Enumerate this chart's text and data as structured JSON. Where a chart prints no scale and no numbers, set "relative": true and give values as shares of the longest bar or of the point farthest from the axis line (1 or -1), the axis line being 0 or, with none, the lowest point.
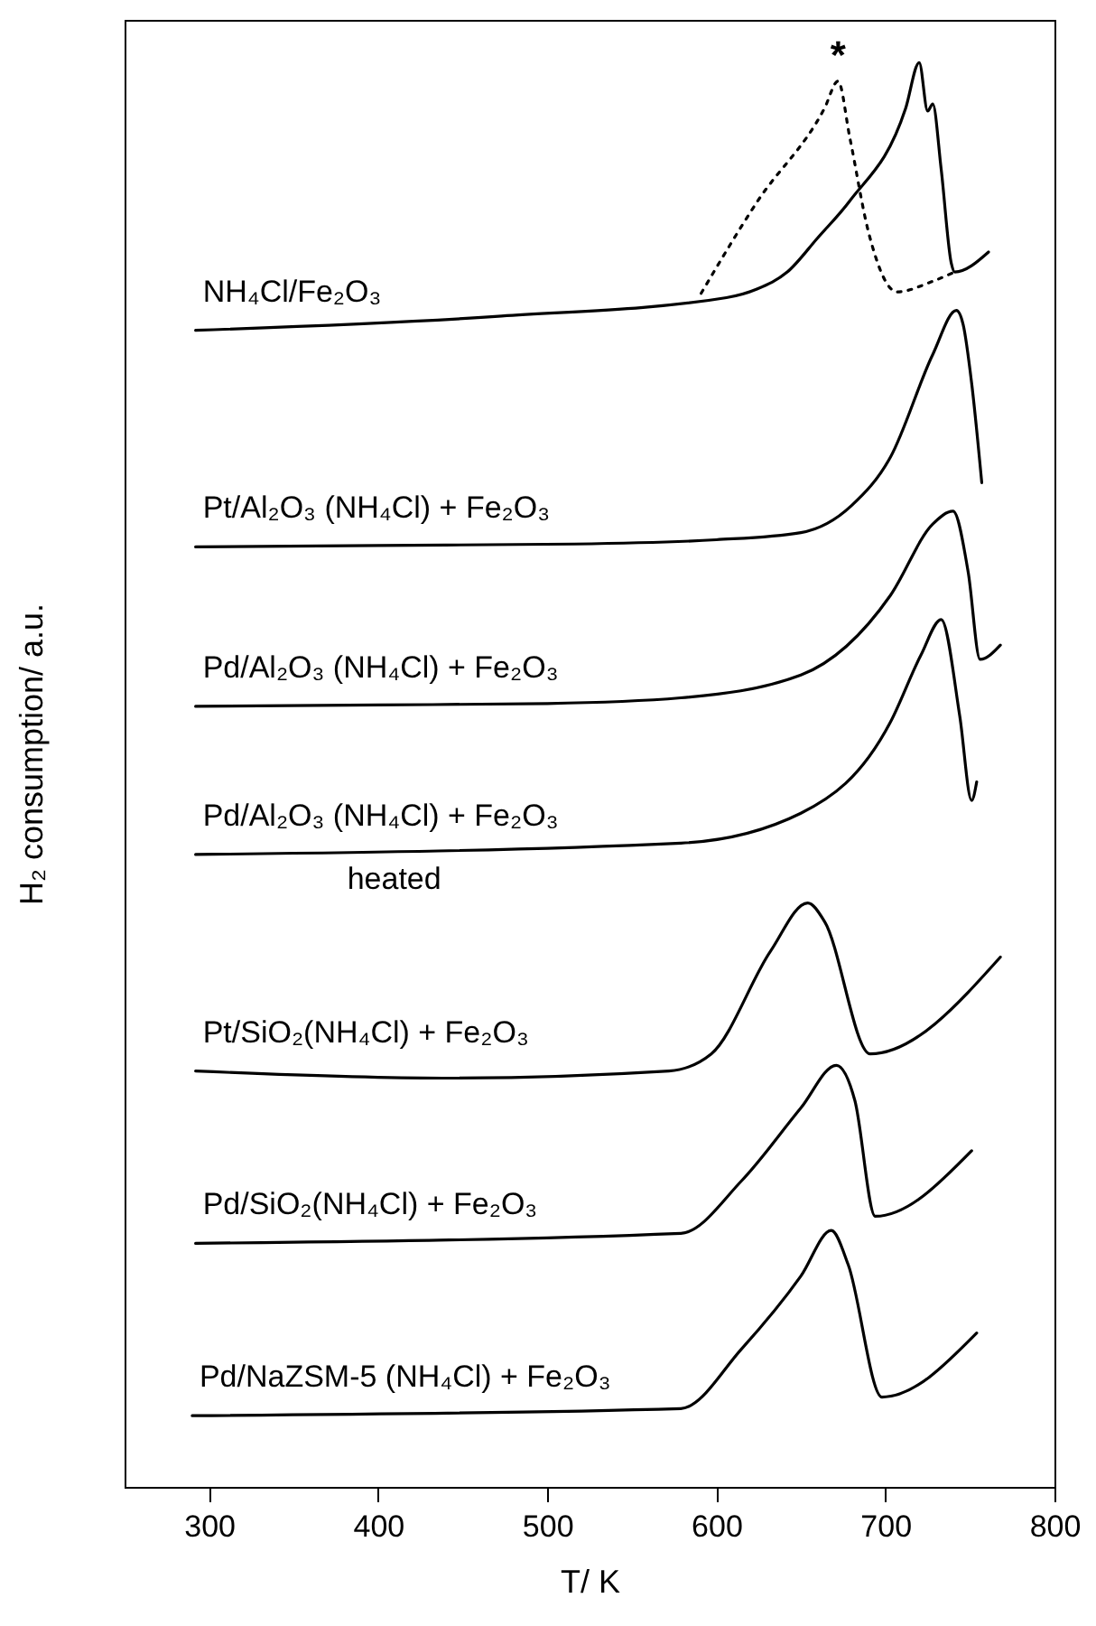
{
  "chart_data": {
    "type": "line",
    "relative": true,
    "xlabel": "T/ K",
    "ylabel": "H₂ consumption/ a.u.",
    "xlim": [
      250,
      800
    ],
    "xticks": [
      300,
      400,
      500,
      600,
      700,
      800
    ],
    "grid": false,
    "series": [
      {
        "name": "NH₄Cl/Fe₂O₃",
        "color": "#000000",
        "line_style": "solid",
        "x": [
          292,
          473,
          606,
          624,
          642,
          660,
          679,
          712,
          720,
          725,
          728,
          733,
          739,
          741,
          761
        ],
        "values": [
          0.812,
          0.822,
          0.835,
          0.841,
          0.853,
          0.877,
          0.903,
          0.968,
          1,
          0.966,
          0.971,
          0.925,
          0.859,
          0.853,
          0.867
        ]
      },
      {
        "color": "#000000",
        "line_style": "dotted",
        "x": [
          591,
          624,
          664,
          672,
          679,
          690,
          707,
          727,
          741
        ],
        "values": [
          0.838,
          0.902,
          0.968,
          0.987,
          0.947,
          0.881,
          0.839,
          0.846,
          0.853
        ]
      },
      {
        "name": "Pt/Al₂O₃ (NH₄Cl) + Fe₂O₃",
        "color": "#000000",
        "line_style": "solid",
        "x": [
          292,
          400,
          516,
          600,
          650,
          680,
          703,
          728,
          742,
          746,
          751,
          757
        ],
        "values": [
          0.66,
          0.661,
          0.662,
          0.665,
          0.67,
          0.689,
          0.723,
          0.795,
          0.826,
          0.816,
          0.775,
          0.705
        ]
      },
      {
        "name": "Pd/Al₂O₃ (NH₄Cl) + Fe₂O₃",
        "color": "#000000",
        "line_style": "solid",
        "x": [
          292,
          400,
          500,
          579,
          650,
          703,
          728,
          740,
          749,
          756,
          768
        ],
        "values": [
          0.548,
          0.549,
          0.55,
          0.554,
          0.57,
          0.626,
          0.676,
          0.685,
          0.642,
          0.581,
          0.591
        ]
      },
      {
        "name": "Pd/Al₂O₃ (NH₄Cl) + Fe₂O₃\nheated",
        "color": "#000000",
        "line_style": "solid",
        "x": [
          292,
          579,
          650,
          703,
          721,
          733,
          744,
          751,
          754
        ],
        "values": [
          0.444,
          0.452,
          0.473,
          0.537,
          0.584,
          0.609,
          0.541,
          0.482,
          0.495
        ]
      },
      {
        "name": "Pt/SiO₂(NH₄Cl) + Fe₂O₃",
        "color": "#000000",
        "line_style": "solid",
        "x": [
          292,
          438,
          572,
          597,
          632,
          654,
          664,
          691,
          768
        ],
        "values": [
          0.292,
          0.287,
          0.292,
          0.304,
          0.376,
          0.41,
          0.397,
          0.304,
          0.372
        ]
      },
      {
        "name": "Pd/SiO₂(NH₄Cl) + Fe₂O₃",
        "color": "#000000",
        "line_style": "solid",
        "x": [
          292,
          579,
          615,
          650,
          671,
          682,
          694,
          751
        ],
        "values": [
          0.171,
          0.178,
          0.215,
          0.266,
          0.296,
          0.271,
          0.19,
          0.236
        ]
      },
      {
        "name": "Pd/NaZSM-5 (NH₄Cl) + Fe₂O₃",
        "color": "#000000",
        "line_style": "solid",
        "x": [
          290,
          579,
          615,
          650,
          668,
          678,
          698,
          754
        ],
        "values": [
          0.05,
          0.055,
          0.097,
          0.148,
          0.18,
          0.156,
          0.063,
          0.108
        ]
      }
    ],
    "annotations": [
      {
        "text": "*",
        "x": 672,
        "y": 0.987
      }
    ]
  }
}
